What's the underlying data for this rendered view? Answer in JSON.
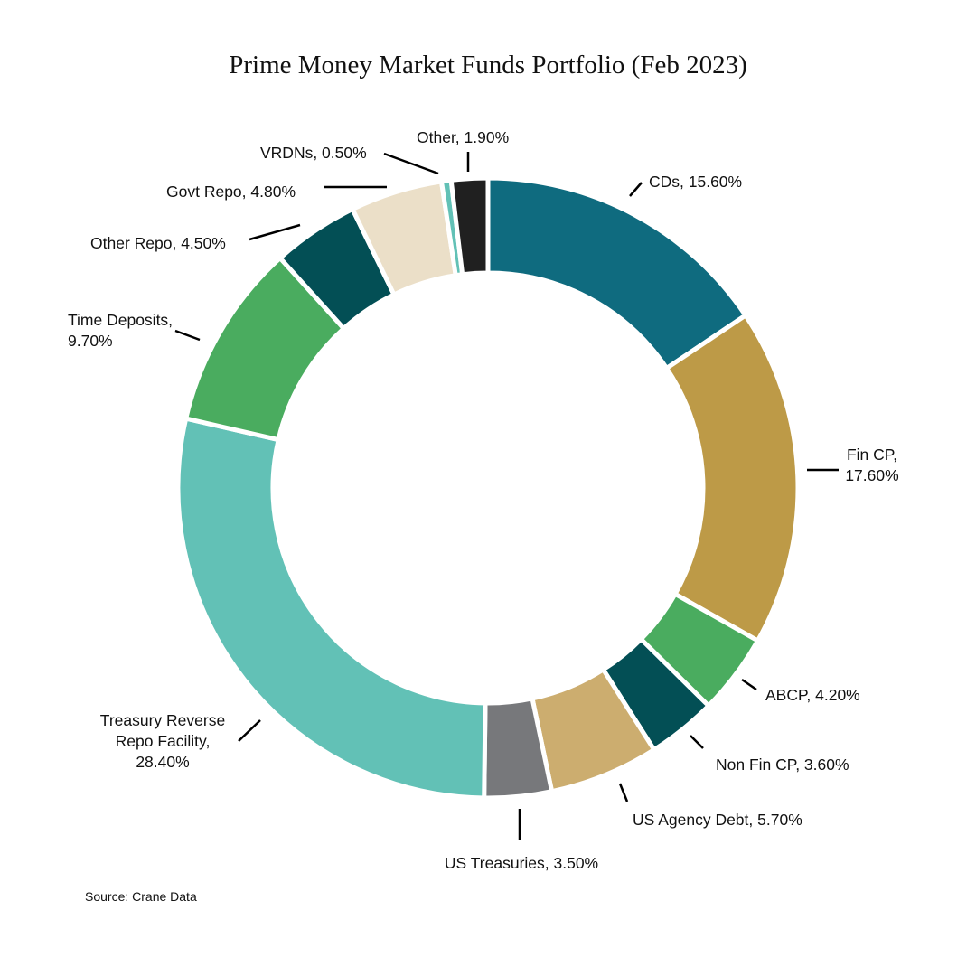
{
  "chart_data": {
    "type": "pie",
    "variant": "donut",
    "title": "Prime Money Market Funds Portfolio (Feb 2023)",
    "source": "Source: Crane Data",
    "value_format": "percent",
    "slices": [
      {
        "label": "CDs",
        "display": "CDs, 15.60%",
        "value": 15.6,
        "color": "#0f6b7f"
      },
      {
        "label": "Fin CP",
        "display": "Fin CP,\n17.60%",
        "value": 17.6,
        "color": "#bd9a47"
      },
      {
        "label": "ABCP",
        "display": "ABCP, 4.20%",
        "value": 4.2,
        "color": "#4aac5f"
      },
      {
        "label": "Non Fin CP",
        "display": "Non Fin CP, 3.60%",
        "value": 3.6,
        "color": "#034f55"
      },
      {
        "label": "US Agency Debt",
        "display": "US Agency Debt, 5.70%",
        "value": 5.7,
        "color": "#ccad6f"
      },
      {
        "label": "US Treasuries",
        "display": "US Treasuries, 3.50%",
        "value": 3.5,
        "color": "#77787b"
      },
      {
        "label": "Treasury Reverse Repo Facility",
        "display": "Treasury Reverse\nRepo Facility,\n28.40%",
        "value": 28.4,
        "color": "#62c1b6"
      },
      {
        "label": "Time Deposits",
        "display": "Time Deposits,\n9.70%",
        "value": 9.7,
        "color": "#4aac5f"
      },
      {
        "label": "Other Repo",
        "display": "Other Repo, 4.50%",
        "value": 4.5,
        "color": "#034f55"
      },
      {
        "label": "Govt Repo",
        "display": "Govt Repo, 4.80%",
        "value": 4.8,
        "color": "#ebdfc8"
      },
      {
        "label": "VRDNs",
        "display": "VRDNs, 0.50%",
        "value": 0.5,
        "color": "#62c1b6"
      },
      {
        "label": "Other",
        "display": "Other, 1.90%",
        "value": 1.9,
        "color": "#202020"
      }
    ]
  }
}
